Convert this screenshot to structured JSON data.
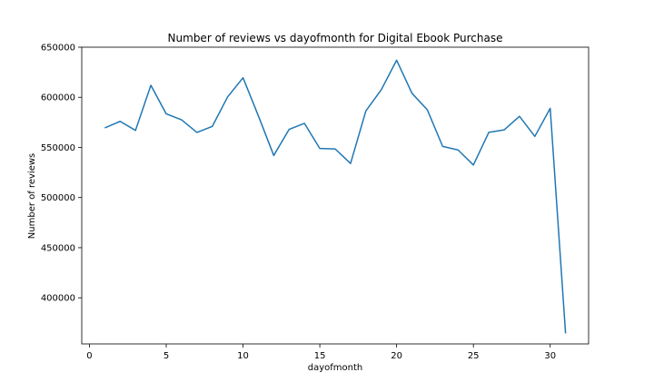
{
  "chart_data": {
    "type": "line",
    "title": "Number of reviews vs dayofmonth for Digital Ebook Purchase",
    "xlabel": "dayofmonth",
    "ylabel": "Number of reviews",
    "xlim": [
      -0.5,
      32.5
    ],
    "ylim": [
      354000,
      650000
    ],
    "xticks": [
      0,
      5,
      10,
      15,
      20,
      25,
      30
    ],
    "yticks": [
      400000,
      450000,
      500000,
      550000,
      600000,
      650000
    ],
    "grid": false,
    "series": [
      {
        "color": "#1f77b4",
        "x": [
          1,
          2,
          3,
          4,
          5,
          6,
          7,
          8,
          9,
          10,
          11,
          12,
          13,
          14,
          15,
          16,
          17,
          18,
          19,
          20,
          21,
          22,
          23,
          24,
          25,
          26,
          27,
          28,
          29,
          30,
          31
        ],
        "y": [
          569500,
          576000,
          567000,
          612000,
          583500,
          577500,
          565000,
          571000,
          600500,
          619500,
          581500,
          542000,
          568000,
          574000,
          549000,
          548500,
          534000,
          586500,
          607500,
          637000,
          604000,
          587500,
          551000,
          547500,
          532500,
          565000,
          567500,
          581000,
          561000,
          589000,
          364500
        ]
      }
    ]
  }
}
